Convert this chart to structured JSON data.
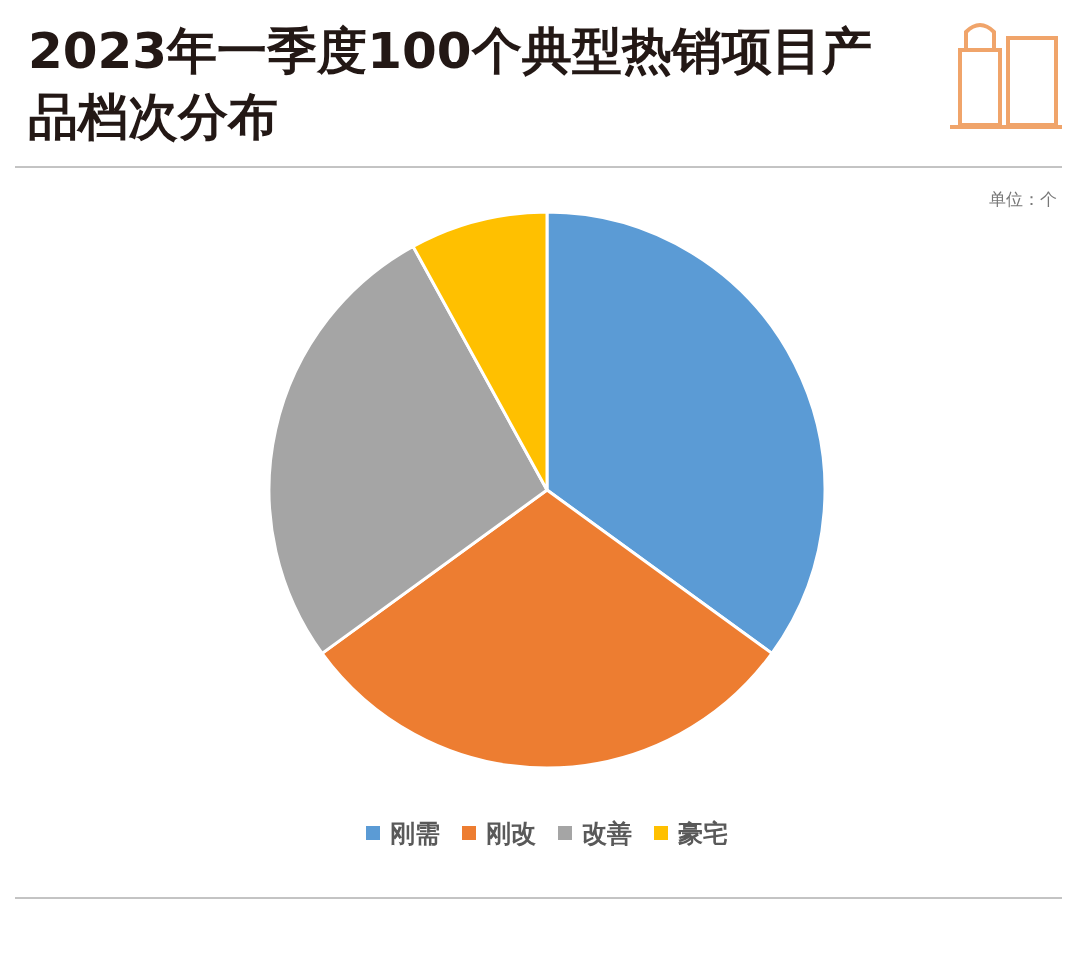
{
  "chart_data": {
    "type": "pie",
    "title": "2023年一季度100个典型热销项目产品档次分布",
    "categories": [
      "刚需",
      "刚改",
      "改善",
      "豪宅"
    ],
    "values": [
      35,
      30,
      27,
      8
    ],
    "colors": [
      "#5b9bd5",
      "#ed7d31",
      "#a5a5a5",
      "#ffc000"
    ],
    "legend": "bottom",
    "annotations": [
      "单位：个"
    ]
  }
}
